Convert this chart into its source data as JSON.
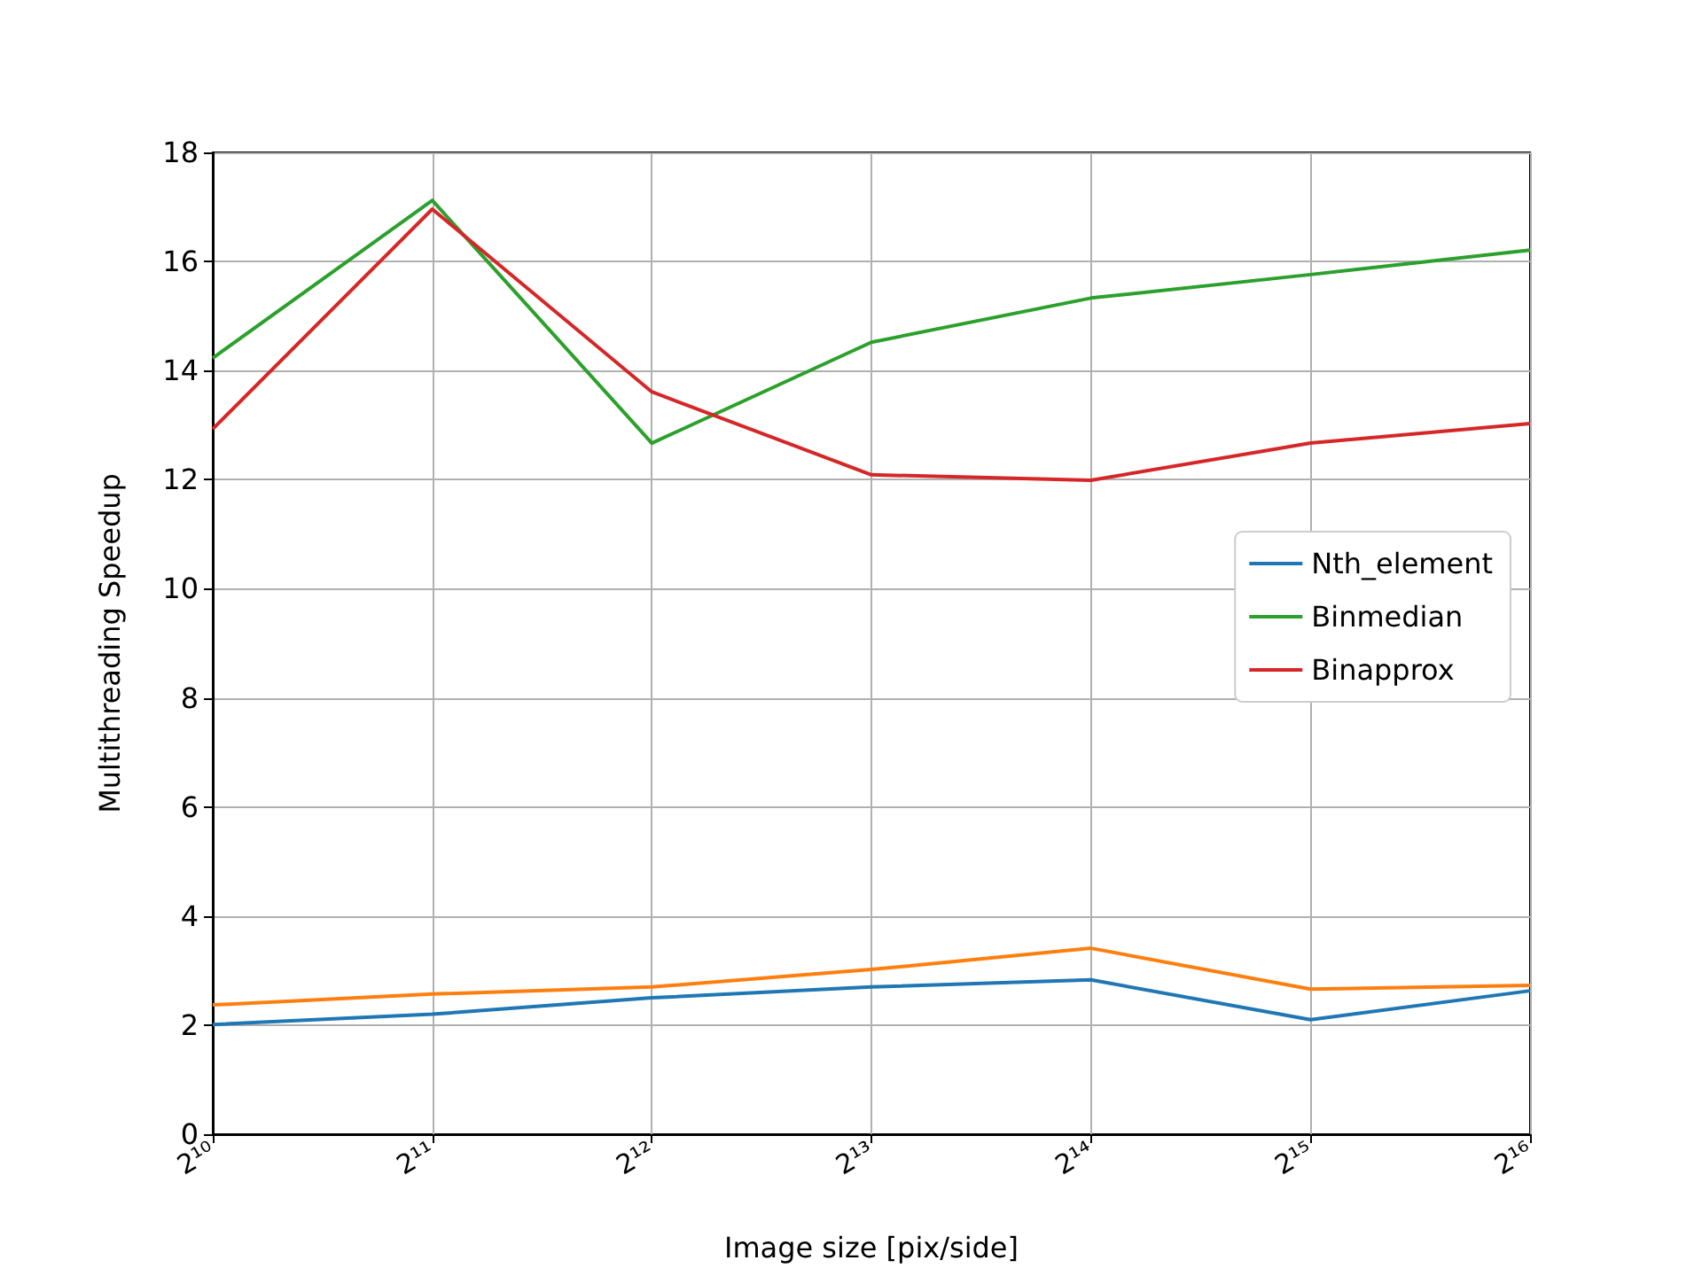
{
  "chart_data": {
    "type": "line",
    "xlabel": "Image size [pix/side]",
    "ylabel": "Multithreading Speedup",
    "x": [
      1024,
      2048,
      4096,
      8192,
      16384,
      32768,
      65536
    ],
    "series": [
      {
        "name": "Nth_element",
        "color": "#1f77b4",
        "values": [
          2.01,
          2.2,
          2.5,
          2.7,
          2.83,
          2.1,
          2.63
        ]
      },
      {
        "color": "#ff7f0e",
        "values": [
          2.37,
          2.57,
          2.7,
          3.02,
          3.41,
          2.66,
          2.73
        ]
      },
      {
        "name": "Binmedian",
        "color": "#2ca02c",
        "values": [
          14.23,
          17.12,
          12.67,
          14.52,
          15.33,
          15.76,
          16.21
        ]
      },
      {
        "name": "Binapprox",
        "color": "#d62728",
        "values": [
          12.93,
          16.96,
          13.61,
          12.09,
          11.99,
          12.67,
          13.03
        ]
      }
    ],
    "log": "x",
    "xlim": [
      1024,
      65536
    ],
    "xticks": [
      {
        "value": 1024,
        "label": "2¹⁰"
      },
      {
        "value": 2048,
        "label": "2¹¹"
      },
      {
        "value": 4096,
        "label": "2¹²"
      },
      {
        "value": 8192,
        "label": "2¹³"
      },
      {
        "value": 16384,
        "label": "2¹⁴"
      },
      {
        "value": 32768,
        "label": "2¹⁵"
      },
      {
        "value": 65536,
        "label": "2¹⁶"
      }
    ],
    "ylim": [
      0,
      18
    ],
    "yticks": [
      0,
      2,
      4,
      6,
      8,
      10,
      12,
      14,
      16,
      18
    ],
    "grid": true,
    "legend": "right",
    "marker": "none",
    "line_style": "solid"
  }
}
